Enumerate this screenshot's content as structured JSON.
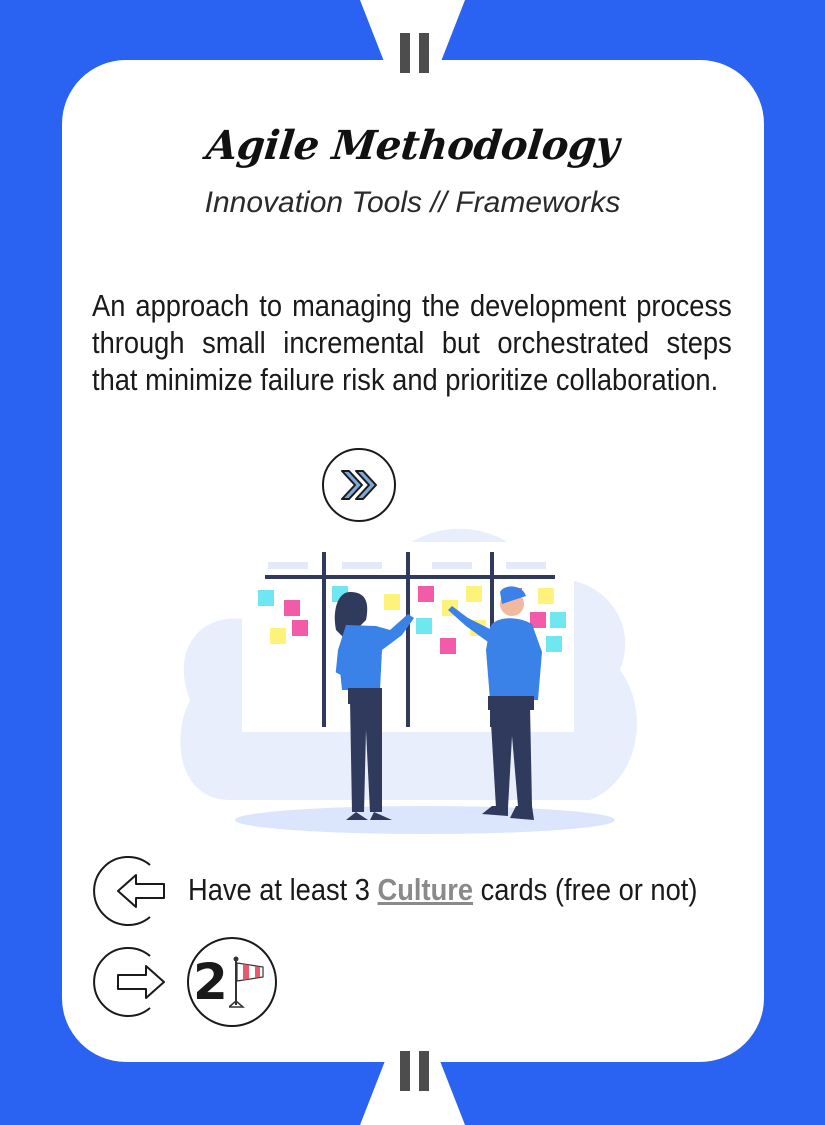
{
  "card": {
    "title": "Agile Methodology",
    "subtitle": "Innovation Tools // Frameworks",
    "description": "An approach to managing the development process through small incremental but orchestrated steps that minimize failure risk and prioritize collaboration.",
    "requirement": {
      "prefix": "Have at least 3 ",
      "keyword": "Culture",
      "suffix": " cards (free or not)"
    },
    "reward": {
      "value": "2",
      "icon": "windsock-icon"
    },
    "speed_icon": "double-chevron-right-icon"
  },
  "colors": {
    "background": "#2a62f2",
    "card": "#ffffff",
    "keyword": "#8a8a8a",
    "illustration_primary": "#3b82e8",
    "illustration_dark": "#2f3a5c"
  }
}
